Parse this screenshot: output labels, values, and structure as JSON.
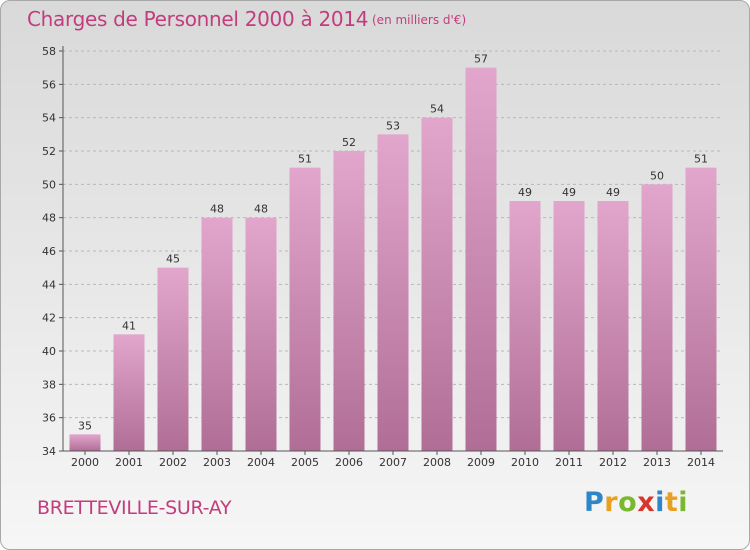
{
  "chart_data": {
    "type": "bar",
    "title": "Charges de Personnel 2000 à 2014",
    "subtitle": "(en milliers d'€)",
    "categories": [
      "2000",
      "2001",
      "2002",
      "2003",
      "2004",
      "2005",
      "2006",
      "2007",
      "2008",
      "2009",
      "2010",
      "2011",
      "2012",
      "2013",
      "2014"
    ],
    "values": [
      35,
      41,
      45,
      48,
      48,
      51,
      52,
      53,
      54,
      57,
      49,
      49,
      49,
      50,
      51
    ],
    "ylim": [
      34,
      58
    ],
    "yticks": [
      34,
      36,
      38,
      40,
      42,
      44,
      46,
      48,
      50,
      52,
      54,
      56,
      58
    ],
    "grid": true,
    "colors": {
      "bar_top": "#e2a6cc",
      "bar_bottom": "#b06e96",
      "accent": "#c23d7d"
    }
  },
  "commune": "BRETTEVILLE-SUR-AY",
  "logo": {
    "text": "Proxiti",
    "letters": [
      {
        "ch": "P",
        "color": "#2e86c9"
      },
      {
        "ch": "r",
        "color": "#e8a020"
      },
      {
        "ch": "o",
        "color": "#7ab82e"
      },
      {
        "ch": "x",
        "color": "#d9342b"
      },
      {
        "ch": "i",
        "color": "#2e86c9"
      },
      {
        "ch": "t",
        "color": "#e8a020"
      },
      {
        "ch": "i",
        "color": "#7ab82e"
      }
    ]
  }
}
